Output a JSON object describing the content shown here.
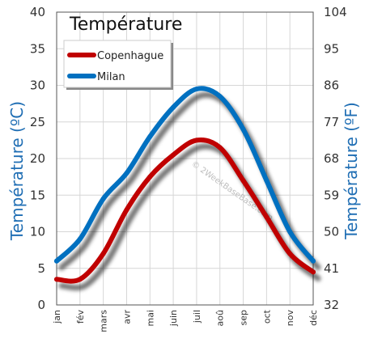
{
  "chart_data": {
    "type": "line",
    "title": "Température",
    "ylabel_left": "Température  (ºC)",
    "ylabel_right": "Température  (ºF)",
    "categories": [
      "jan",
      "fév",
      "mars",
      "avr",
      "mai",
      "juin",
      "juil",
      "aoû",
      "sep",
      "oct",
      "nov",
      "déc"
    ],
    "ylim_left": [
      0,
      40
    ],
    "yticks_left": [
      "0",
      "5",
      "10",
      "15",
      "20",
      "25",
      "30",
      "35",
      "40"
    ],
    "yticks_right": [
      "32",
      "41",
      "50",
      "59",
      "68",
      "77",
      "86",
      "95",
      "104"
    ],
    "grid": true,
    "legend_position": "top-left",
    "series": [
      {
        "name": "Copenhague",
        "color": "#c00000",
        "values": [
          3.5,
          3.5,
          7,
          13,
          17.5,
          20.5,
          22.5,
          21.5,
          17,
          12,
          7,
          4.5
        ]
      },
      {
        "name": "Milan",
        "color": "#0070c0",
        "values": [
          6,
          9,
          14.5,
          18,
          23,
          27,
          29.5,
          28.5,
          24,
          17,
          10,
          6
        ]
      }
    ],
    "watermark": "© 2WeekBaseBase.com"
  }
}
